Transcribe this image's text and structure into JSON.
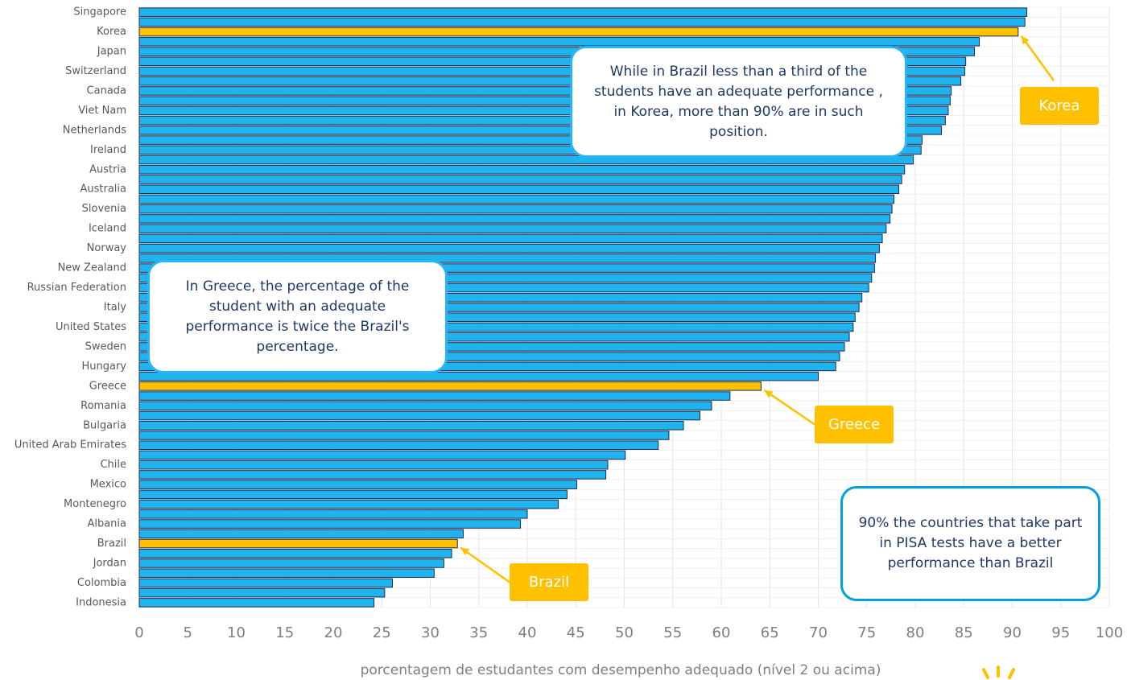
{
  "chart_data": {
    "type": "bar",
    "orientation": "horizontal",
    "categories": [
      "Singapore",
      null,
      "Korea",
      null,
      "Japan",
      null,
      "Switzerland",
      null,
      "Canada",
      null,
      "Viet Nam",
      null,
      "Netherlands",
      null,
      "Ireland",
      null,
      "Austria",
      null,
      "Australia",
      null,
      "Slovenia",
      null,
      "Iceland",
      null,
      "Norway",
      null,
      "New Zealand",
      null,
      "Russian Federation",
      null,
      "Italy",
      null,
      "United States",
      null,
      "Sweden",
      null,
      "Hungary",
      null,
      "Greece",
      null,
      "Romania",
      null,
      "Bulgaria",
      null,
      "United Arab Emirates",
      null,
      "Chile",
      null,
      "Mexico",
      null,
      "Montenegro",
      null,
      "Albania",
      null,
      "Brazil",
      null,
      "Jordan",
      null,
      "Colombia",
      null,
      "Indonesia"
    ],
    "values": [
      91.5,
      91.3,
      90.6,
      86.6,
      86.1,
      85.2,
      85.1,
      84.7,
      83.7,
      83.6,
      83.4,
      83.1,
      82.7,
      80.7,
      80.6,
      79.8,
      78.9,
      78.6,
      78.3,
      77.8,
      77.6,
      77.4,
      77.0,
      76.6,
      76.3,
      75.9,
      75.8,
      75.5,
      75.2,
      74.5,
      74.2,
      73.8,
      73.6,
      73.2,
      72.7,
      72.2,
      71.8,
      70.0,
      64.1,
      60.9,
      59.0,
      57.8,
      56.1,
      54.6,
      53.5,
      50.1,
      48.3,
      48.1,
      45.1,
      44.1,
      43.2,
      40.0,
      39.3,
      33.4,
      32.8,
      32.2,
      31.4,
      30.4,
      26.1,
      25.3,
      24.2
    ],
    "color": "#1fb4ef",
    "highlight": [
      "Korea",
      "Greece",
      "Brazil"
    ],
    "highlight_color": "#ffc000",
    "xlim": [
      0,
      100
    ],
    "xticks": [
      0,
      5,
      10,
      15,
      20,
      25,
      30,
      35,
      40,
      45,
      50,
      55,
      60,
      65,
      70,
      75,
      80,
      85,
      90,
      95,
      100
    ],
    "grid": true,
    "xlabel": "porcentagem de estudantes com desempenho adequado (nível 2 ou acima)",
    "callouts": [
      "While in Brazil less than a third of the students have an adequate performance , in Korea, more than 90% are in such position.",
      "In Greece, the percentage of the student with an adequate performance is twice the Brazil's percentage.",
      "90% the countries that take part in PISA tests  have a better performance than Brazil"
    ],
    "tags": [
      "Korea",
      "Greece",
      "Brazil"
    ]
  }
}
